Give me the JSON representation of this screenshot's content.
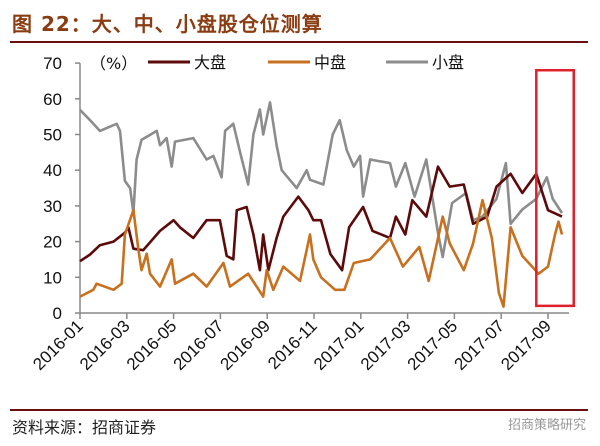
{
  "title": "图 22：大、中、小盘股仓位测算",
  "source": "资料来源：招商证券",
  "watermark": "招商策略研究",
  "colors": {
    "large": "#5c0a0a",
    "mid": "#c8701e",
    "small": "#8c8c8c",
    "highlight": "#e0202a",
    "title": "#8a3d12"
  },
  "chart_data": {
    "type": "line",
    "title": "大、中、小盘股仓位测算",
    "ylabel": "（%）",
    "xlabel": "",
    "ylim": [
      0,
      70
    ],
    "yticks": [
      "0",
      "10",
      "20",
      "30",
      "40",
      "50",
      "60",
      "70"
    ],
    "x_unit": "months since 2016-01",
    "xticks": [
      "2016-01",
      "2016-03",
      "2016-05",
      "2016-07",
      "2016-09",
      "2016-11",
      "2017-01",
      "2017-03",
      "2017-05",
      "2017-07",
      "2017-09"
    ],
    "legend": "top",
    "grid": false,
    "highlight": {
      "x_range": [
        19.5,
        21.1
      ],
      "y_range": [
        2,
        68
      ]
    },
    "series": [
      {
        "name": "大盘",
        "key": "large",
        "x": [
          0,
          0.43,
          0.85,
          1.43,
          1.92,
          2.07,
          2.28,
          2.7,
          3.42,
          4.0,
          4.27,
          4.84,
          5.41,
          5.98,
          6.27,
          6.55,
          6.7,
          7.12,
          7.41,
          7.69,
          7.83,
          8.05,
          8.4,
          8.69,
          9.33,
          9.76,
          9.97,
          10.3,
          10.7,
          11.2,
          11.5,
          12.1,
          12.5,
          13.25,
          13.5,
          13.9,
          14.2,
          14.8,
          15.3,
          15.8,
          16.4,
          16.8,
          17.4,
          17.8,
          18.4,
          18.9,
          19.5,
          20.0,
          20.6
        ],
        "values": [
          14.5,
          16.4,
          19,
          20,
          22.5,
          24,
          18,
          17.6,
          23,
          26,
          24,
          21,
          26,
          26,
          16,
          15,
          28.8,
          29.7,
          22,
          12,
          22,
          12,
          21,
          27,
          32.6,
          28.8,
          26,
          26,
          16.5,
          12,
          24,
          29.7,
          23,
          21,
          27,
          22,
          31.6,
          27,
          41,
          35.4,
          36,
          25,
          27,
          35.4,
          39,
          33.6,
          39,
          28.8,
          27
        ]
      },
      {
        "name": "中盘",
        "key": "mid",
        "x": [
          0,
          0.57,
          0.71,
          1.43,
          1.78,
          1.92,
          2.28,
          2.5,
          2.63,
          2.85,
          2.99,
          3.42,
          3.92,
          4.06,
          4.84,
          5.41,
          6.13,
          6.41,
          7.19,
          7.83,
          7.98,
          8.26,
          8.69,
          9.4,
          9.83,
          9.97,
          10.3,
          10.9,
          11.3,
          11.7,
          12.4,
          13.25,
          13.8,
          14.5,
          14.9,
          15.5,
          15.8,
          16.4,
          16.8,
          17.2,
          17.6,
          17.9,
          18.1,
          18.4,
          18.9,
          19.6,
          20.0,
          20.3,
          20.45,
          20.6
        ],
        "values": [
          4.6,
          6.5,
          8.2,
          6.5,
          8.2,
          22,
          28.8,
          17.6,
          12,
          16.6,
          11,
          7.4,
          15,
          8.2,
          11,
          7.4,
          14,
          7.4,
          11,
          4.6,
          12,
          6.5,
          13,
          9,
          22,
          15,
          10,
          6.5,
          6.5,
          14,
          15,
          21,
          13,
          18.5,
          9,
          27,
          19.5,
          12,
          19.5,
          31.6,
          21,
          5.6,
          1.8,
          24,
          16,
          11,
          13,
          22,
          25.6,
          22
        ]
      },
      {
        "name": "小盘",
        "key": "small",
        "x": [
          0,
          0.43,
          0.85,
          1.57,
          1.71,
          1.92,
          2.14,
          2.28,
          2.42,
          2.63,
          3.28,
          3.42,
          3.7,
          3.92,
          4.06,
          4.84,
          5.41,
          5.7,
          6.05,
          6.2,
          6.55,
          6.84,
          7.19,
          7.41,
          7.69,
          7.83,
          8.12,
          8.4,
          8.62,
          9.26,
          9.69,
          9.83,
          10.4,
          10.8,
          11.1,
          11.4,
          11.7,
          11.97,
          12.1,
          12.4,
          13.25,
          13.5,
          13.9,
          14.3,
          14.8,
          15.3,
          15.5,
          15.9,
          16.5,
          16.8,
          17.2,
          17.8,
          18.2,
          18.4,
          18.9,
          19.5,
          19.95,
          20.2,
          20.6
        ],
        "values": [
          56.9,
          54,
          51,
          53,
          51,
          37,
          35,
          28,
          43,
          48.5,
          51,
          47,
          49,
          41,
          48,
          49,
          43,
          44,
          38,
          51,
          53,
          45,
          36,
          50,
          57,
          50,
          59,
          47,
          40,
          35,
          40,
          37.3,
          36,
          50,
          54,
          45.6,
          41,
          44,
          32.6,
          43,
          42,
          35.4,
          42,
          32.6,
          43,
          22.4,
          15.7,
          30.8,
          33.6,
          26,
          27,
          32,
          42,
          25,
          29,
          32,
          38,
          32,
          28
        ]
      }
    ]
  }
}
